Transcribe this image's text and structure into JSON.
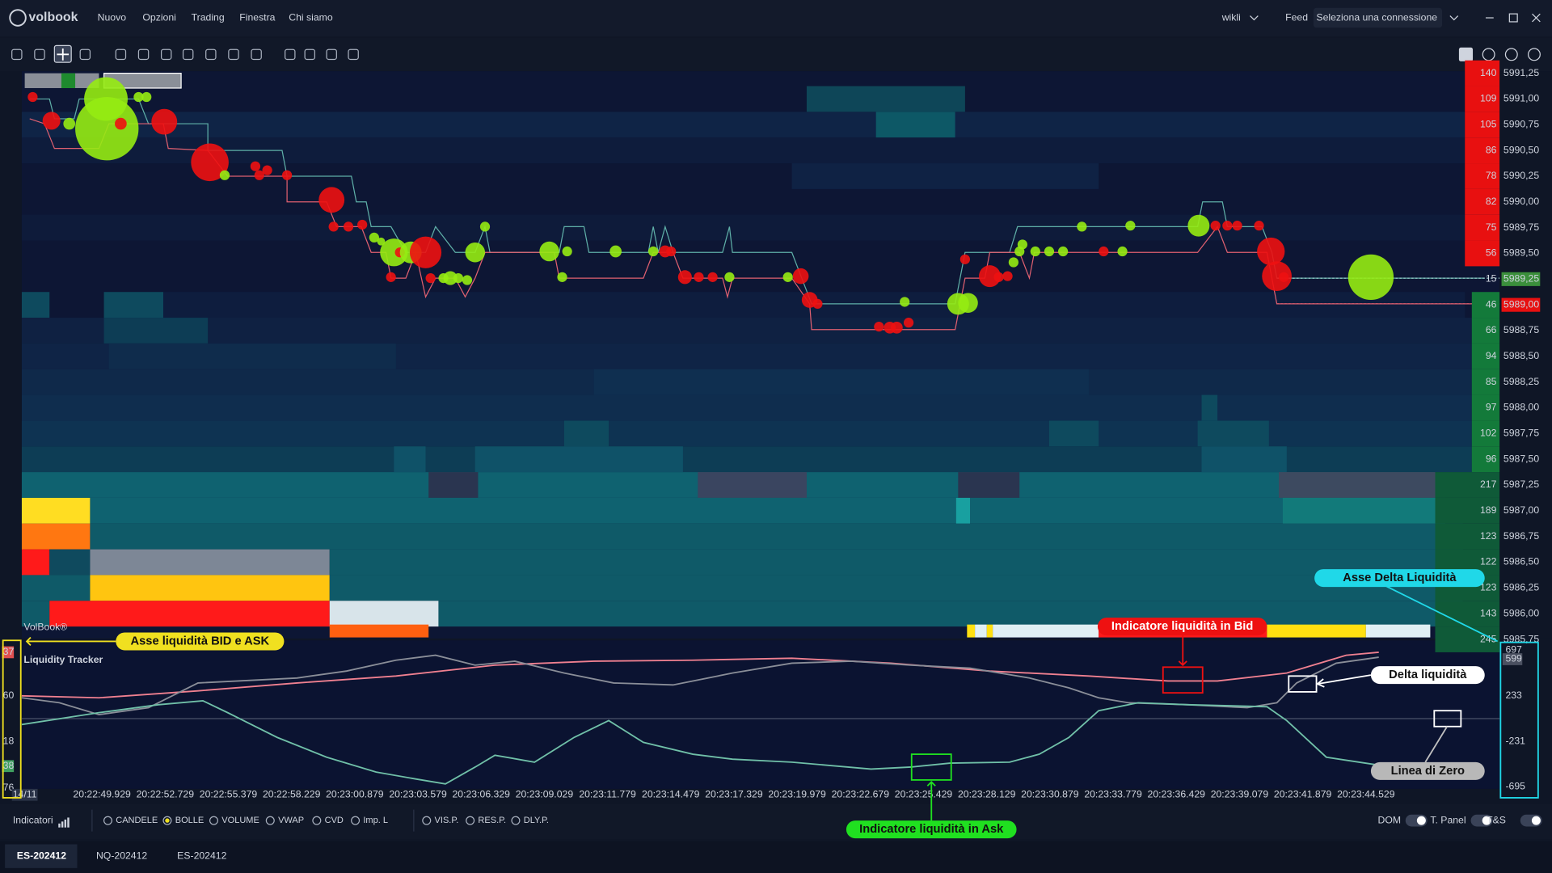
{
  "menu": {
    "logo": "volbook",
    "items": [
      "Nuovo",
      "Opzioni",
      "Trading",
      "Finestra",
      "Chi siamo"
    ],
    "user": "wikli",
    "feed": "Feed",
    "connection": "Seleziona una connessione"
  },
  "price_axis": {
    "prices": [
      "5991,25",
      "5991,00",
      "5990,75",
      "5990,50",
      "5990,25",
      "5990,00",
      "5989,75",
      "5989,50",
      "5989,25",
      "5989,00",
      "5988,75",
      "5988,50",
      "5988,25",
      "5988,00",
      "5987,75",
      "5987,50",
      "5987,25",
      "5987,00",
      "5986,75",
      "5986,50",
      "5986,25",
      "5986,00",
      "5985,75"
    ],
    "volumes": [
      140,
      109,
      105,
      86,
      78,
      82,
      75,
      56,
      15,
      46,
      66,
      94,
      85,
      97,
      102,
      96,
      217,
      189,
      123,
      122,
      123,
      143,
      245
    ]
  },
  "watermark": "VolBook®",
  "tracker": {
    "title": "Liquidity Tracker",
    "left_axis": [
      37,
      60,
      18,
      38,
      76
    ],
    "right_axis": [
      697,
      599,
      233,
      -231,
      -695
    ]
  },
  "time_axis": {
    "date": "14/11",
    "times": [
      "20:22:49.929",
      "20:22:52.729",
      "20:22:55.379",
      "20:22:58.229",
      "20:23:00.879",
      "20:23:03.579",
      "20:23:06.329",
      "20:23:09.029",
      "20:23:11.779",
      "20:23:14.479",
      "20:23:17.329",
      "20:23:19.979",
      "20:23:22.679",
      "20:23:25.429",
      "20:23:28.129",
      "20:23:30.879",
      "20:23:33.779",
      "20:23:36.429",
      "20:23:39.079",
      "20:23:41.879",
      "20:23:44.529"
    ]
  },
  "annotations": {
    "bid_ask_axis": "Asse liquidità BID e ASK",
    "delta_axis": "Asse Delta Liquidità",
    "bid_indicator": "Indicatore liquidità in Bid",
    "delta": "Delta liquidità",
    "zero_line": "Linea di Zero",
    "ask_indicator": "Indicatore liquidità in Ask"
  },
  "indicators": {
    "label": "Indicatori",
    "options": [
      "CANDELE",
      "BOLLE",
      "VOLUME",
      "VWAP",
      "CVD",
      "Imp. L",
      "VIS.P.",
      "RES.P.",
      "DLY.P."
    ],
    "selected": 1,
    "toggles": [
      "DOM",
      "T. Panel",
      "T&S"
    ]
  },
  "tabs": [
    "ES-202412",
    "NQ-202412",
    "ES-202412"
  ]
}
